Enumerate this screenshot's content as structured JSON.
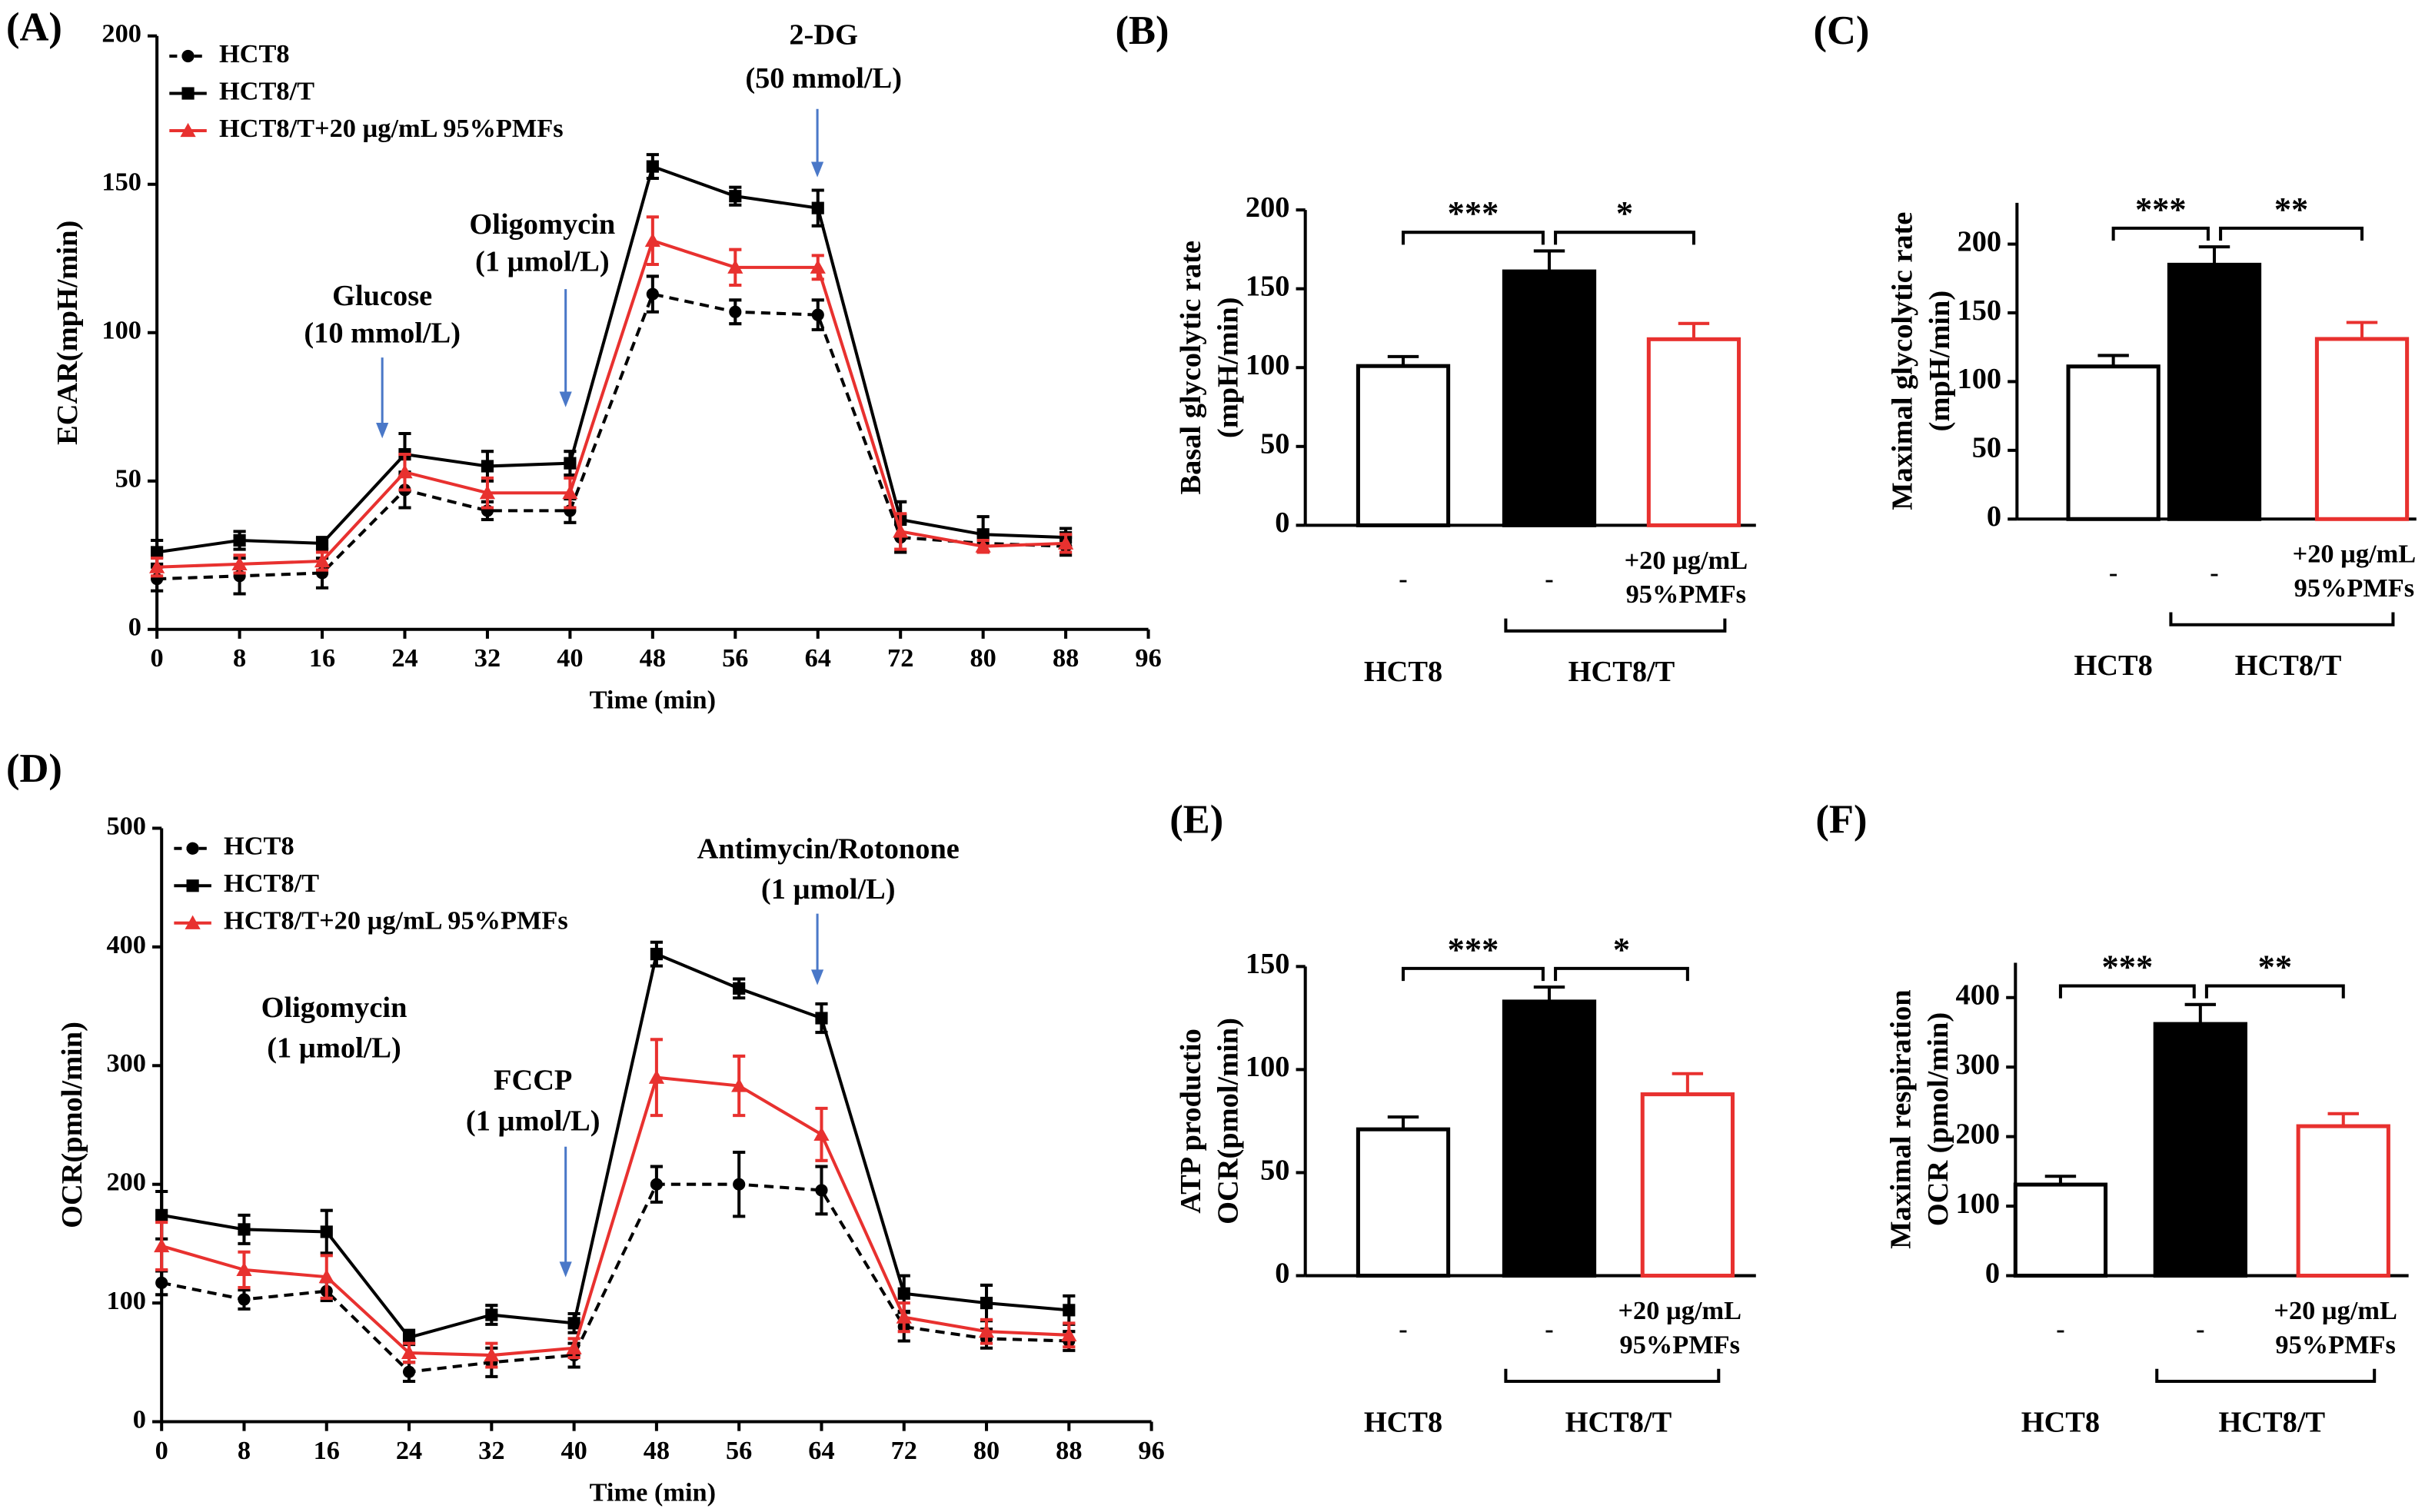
{
  "chart_data": [
    {
      "type": "line",
      "panel": "(A)",
      "ylabel": "ECAR(mpH/min)",
      "xlabel": "Time (min)",
      "x": [
        0,
        8,
        16,
        24,
        32,
        40,
        48,
        56,
        64,
        72,
        80,
        88
      ],
      "xlim": [
        0,
        96
      ],
      "xticks": [
        0,
        8,
        16,
        24,
        32,
        40,
        48,
        56,
        64,
        72,
        80,
        88,
        96
      ],
      "ylim": [
        0,
        200
      ],
      "yticks": [
        0,
        50,
        100,
        150,
        200
      ],
      "legend": "upper left",
      "series": [
        {
          "name": "HCT8",
          "color": "#000000",
          "linestyle": "dashed",
          "marker": "circle",
          "values": [
            17,
            18,
            19,
            47,
            40,
            40,
            113,
            107,
            106,
            31,
            29,
            28
          ],
          "errors": [
            4,
            6,
            5,
            6,
            3,
            4,
            6,
            4,
            5,
            5,
            3,
            3
          ]
        },
        {
          "name": "HCT8/T",
          "color": "#000000",
          "linestyle": "solid",
          "marker": "square",
          "values": [
            26,
            30,
            29,
            59,
            55,
            56,
            156,
            146,
            142,
            37,
            32,
            31
          ],
          "errors": [
            4,
            3,
            2,
            7,
            5,
            4,
            4,
            3,
            6,
            6,
            6,
            3
          ]
        },
        {
          "name": "HCT8/T+20 µg/mL 95%PMFs",
          "color": "#e8312f",
          "linestyle": "solid",
          "marker": "triangle",
          "values": [
            21,
            22,
            23,
            53,
            46,
            46,
            131,
            122,
            122,
            33,
            28,
            29
          ],
          "errors": [
            3,
            3,
            3,
            6,
            5,
            5,
            8,
            6,
            4,
            6,
            2,
            3
          ]
        }
      ],
      "annotations": [
        [
          "Glucose",
          "(10 mmol/L)"
        ],
        [
          "Oligomycin",
          "(1 µmol/L)"
        ],
        [
          "2-DG",
          "(50 mmol/L)"
        ]
      ]
    },
    {
      "type": "bar",
      "panel": "(B)",
      "ylabel": [
        "Basal glycolytic rate",
        "(mpH/min)"
      ],
      "categories": [
        "-",
        "-",
        [
          "+20 µg/mL",
          "95%PMFs"
        ]
      ],
      "groups": [
        "HCT8",
        "HCT8/T"
      ],
      "values": [
        101,
        161,
        118
      ],
      "errors": [
        6,
        13,
        10
      ],
      "colors": [
        "#ffffff",
        "#000000",
        "#ffffff"
      ],
      "edgecolors": [
        "#000000",
        "#000000",
        "#e8312f"
      ],
      "ylim": [
        0,
        200
      ],
      "yticks": [
        0,
        50,
        100,
        150,
        200
      ],
      "significance": [
        "***",
        "*"
      ]
    },
    {
      "type": "bar",
      "panel": "(C)",
      "ylabel": [
        "Maximal glycolytic rate",
        "(mpH/min)"
      ],
      "categories": [
        "-",
        "-",
        [
          "+20 µg/mL",
          "95%PMFs"
        ]
      ],
      "groups": [
        "HCT8",
        "HCT8/T"
      ],
      "values": [
        111,
        185,
        131
      ],
      "errors": [
        8,
        13,
        12
      ],
      "colors": [
        "#ffffff",
        "#000000",
        "#ffffff"
      ],
      "edgecolors": [
        "#000000",
        "#000000",
        "#e8312f"
      ],
      "ylim": [
        0,
        230
      ],
      "yticks": [
        0,
        50,
        100,
        150,
        200
      ],
      "significance": [
        "***",
        "**"
      ]
    },
    {
      "type": "line",
      "panel": "(D)",
      "ylabel": "OCR(pmol/min)",
      "xlabel": "Time (min)",
      "x": [
        0,
        8,
        16,
        24,
        32,
        40,
        48,
        56,
        64,
        72,
        80,
        88
      ],
      "xlim": [
        0,
        96
      ],
      "xticks": [
        0,
        8,
        16,
        24,
        32,
        40,
        48,
        56,
        64,
        72,
        80,
        88,
        96
      ],
      "ylim": [
        0,
        500
      ],
      "yticks": [
        0,
        100,
        200,
        300,
        400,
        500
      ],
      "legend": "upper left",
      "series": [
        {
          "name": "HCT8",
          "color": "#000000",
          "linestyle": "dashed",
          "marker": "circle",
          "values": [
            117,
            103,
            110,
            42,
            50,
            56,
            200,
            200,
            195,
            80,
            70,
            68
          ],
          "errors": [
            10,
            8,
            8,
            8,
            12,
            10,
            15,
            27,
            20,
            12,
            8,
            8
          ]
        },
        {
          "name": "HCT8/T",
          "color": "#000000",
          "linestyle": "solid",
          "marker": "square",
          "values": [
            174,
            162,
            160,
            71,
            90,
            83,
            394,
            365,
            340,
            108,
            100,
            94
          ],
          "errors": [
            20,
            12,
            18,
            6,
            8,
            8,
            10,
            8,
            12,
            15,
            15,
            12
          ]
        },
        {
          "name": "HCT8/T+20 µg/mL 95%PMFs",
          "color": "#e8312f",
          "linestyle": "solid",
          "marker": "triangle",
          "values": [
            148,
            128,
            122,
            58,
            56,
            62,
            290,
            283,
            242,
            88,
            76,
            73
          ],
          "errors": [
            20,
            15,
            18,
            8,
            10,
            8,
            32,
            25,
            22,
            12,
            10,
            10
          ]
        }
      ],
      "annotations": [
        [
          "Oligomycin",
          "(1 µmol/L)"
        ],
        [
          "FCCP",
          "(1 µmol/L)"
        ],
        [
          "Antimycin/Rotonone",
          "(1 µmol/L)"
        ]
      ]
    },
    {
      "type": "bar",
      "panel": "(E)",
      "ylabel": [
        "ATP productio",
        "OCR(pmol/min)"
      ],
      "categories": [
        "-",
        "-",
        [
          "+20 µg/mL",
          "95%PMFs"
        ]
      ],
      "groups": [
        "HCT8",
        "HCT8/T"
      ],
      "values": [
        71,
        133,
        88
      ],
      "errors": [
        6,
        7,
        10
      ],
      "colors": [
        "#ffffff",
        "#000000",
        "#ffffff"
      ],
      "edgecolors": [
        "#000000",
        "#000000",
        "#e8312f"
      ],
      "ylim": [
        0,
        150
      ],
      "yticks": [
        0,
        50,
        100,
        150
      ],
      "significance": [
        "***",
        "*"
      ]
    },
    {
      "type": "bar",
      "panel": "(F)",
      "ylabel": [
        "Maximal respiration",
        "OCR (pmol/min)"
      ],
      "categories": [
        "-",
        "-",
        [
          "+20 µg/mL",
          "95%PMFs"
        ]
      ],
      "groups": [
        "HCT8",
        "HCT8/T"
      ],
      "values": [
        131,
        362,
        215
      ],
      "errors": [
        12,
        28,
        18
      ],
      "colors": [
        "#ffffff",
        "#000000",
        "#ffffff"
      ],
      "edgecolors": [
        "#000000",
        "#000000",
        "#e8312f"
      ],
      "ylim": [
        0,
        450
      ],
      "yticks": [
        0,
        100,
        200,
        300,
        400
      ],
      "significance": [
        "***",
        "**"
      ]
    }
  ]
}
